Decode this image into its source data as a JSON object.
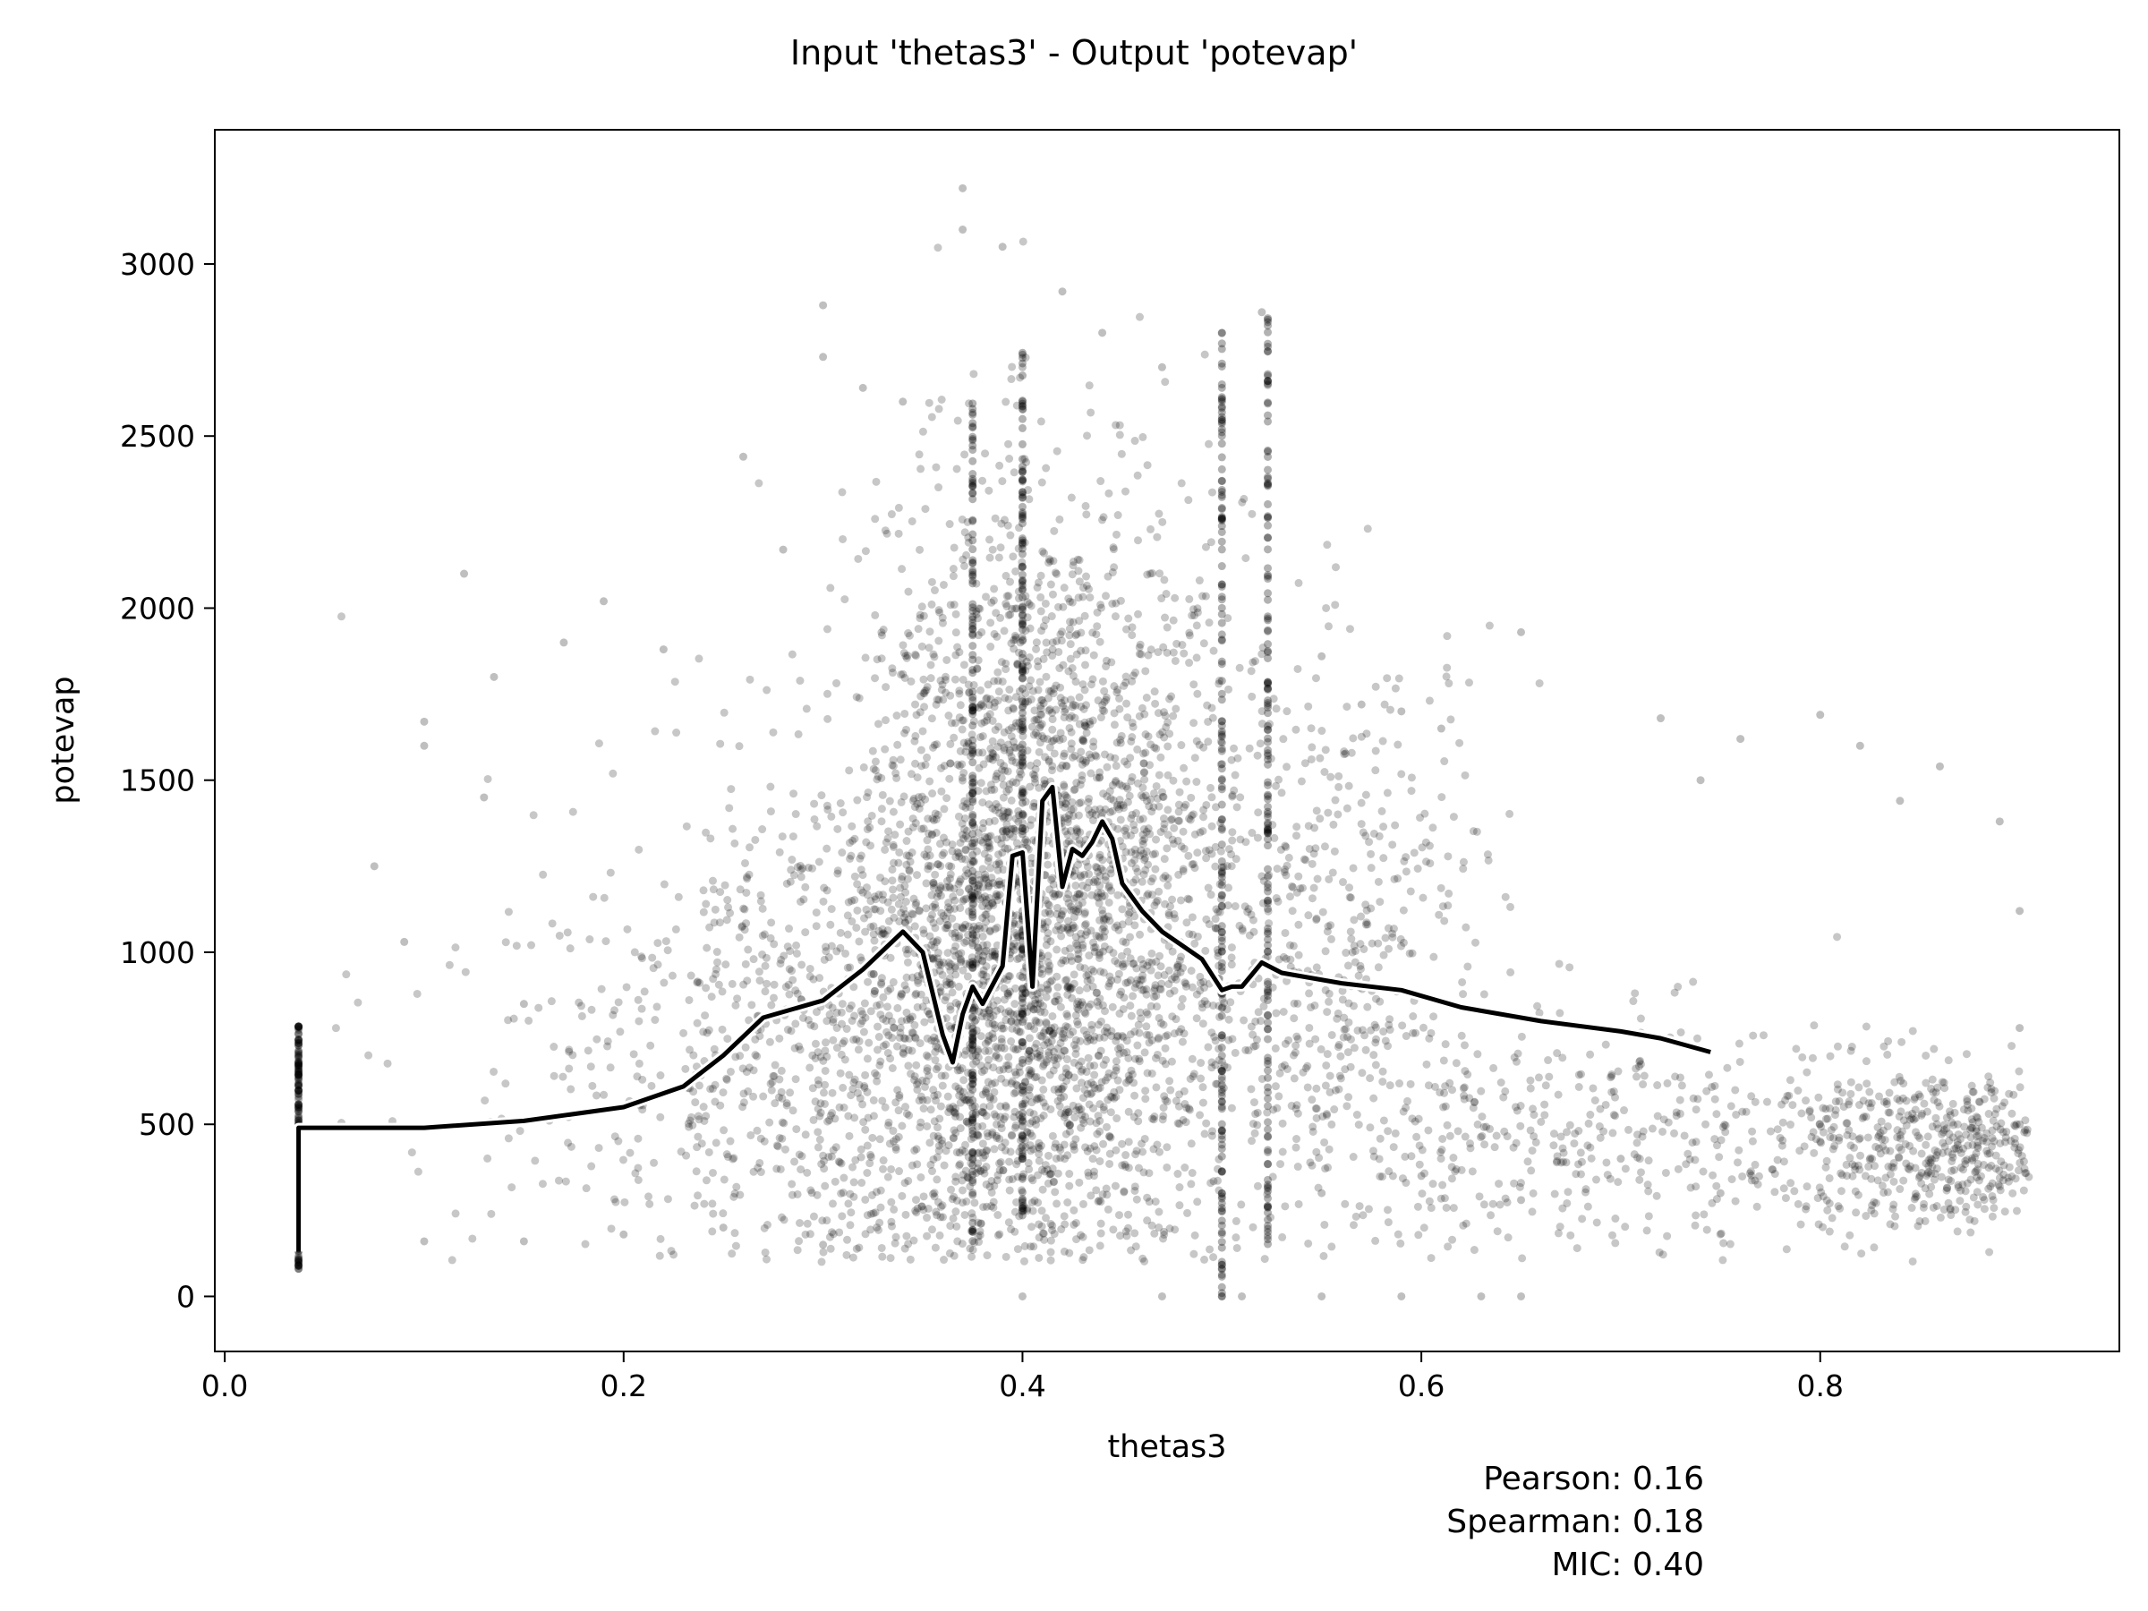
{
  "chart_data": {
    "type": "scatter",
    "title": "Input 'thetas3' - Output 'potevap'",
    "xlabel": "thetas3",
    "ylabel": "potevap",
    "xlim": [
      -0.005,
      0.95
    ],
    "ylim": [
      -160,
      3390
    ],
    "x_ticks": [
      0.0,
      0.2,
      0.4,
      0.6,
      0.8
    ],
    "x_tick_labels": [
      "0.0",
      "0.2",
      "0.4",
      "0.6",
      "0.8"
    ],
    "y_ticks": [
      0,
      500,
      1000,
      1500,
      2000,
      2500,
      3000
    ],
    "y_tick_labels": [
      "0",
      "500",
      "1000",
      "1500",
      "2000",
      "2500",
      "3000"
    ],
    "grid": false,
    "stats": {
      "pearson_label": "Pearson: 0.16",
      "spearman_label": "Spearman: 0.18",
      "mic_label": "MIC: 0.40"
    },
    "series": [
      {
        "type": "scatter",
        "color": "#000000",
        "opacity": 0.25,
        "description_points": [
          [
            0.037,
            780
          ],
          [
            0.037,
            700
          ],
          [
            0.037,
            600
          ],
          [
            0.037,
            520
          ],
          [
            0.037,
            90
          ],
          [
            0.075,
            1250
          ],
          [
            0.09,
            1030
          ],
          [
            0.1,
            1670
          ],
          [
            0.1,
            1600
          ],
          [
            0.1,
            160
          ],
          [
            0.12,
            2100
          ],
          [
            0.13,
            1450
          ],
          [
            0.135,
            1800
          ],
          [
            0.15,
            850
          ],
          [
            0.17,
            1900
          ],
          [
            0.19,
            2020
          ],
          [
            0.22,
            1880
          ],
          [
            0.26,
            2440
          ],
          [
            0.28,
            2170
          ],
          [
            0.3,
            2880
          ],
          [
            0.3,
            2730
          ],
          [
            0.32,
            2640
          ],
          [
            0.34,
            2600
          ],
          [
            0.37,
            3220
          ],
          [
            0.37,
            3100
          ],
          [
            0.39,
            3050
          ],
          [
            0.4,
            2700
          ],
          [
            0.42,
            2920
          ],
          [
            0.44,
            2800
          ],
          [
            0.47,
            2700
          ],
          [
            0.5,
            2800
          ],
          [
            0.52,
            2860
          ],
          [
            0.55,
            1860
          ],
          [
            0.57,
            1720
          ],
          [
            0.59,
            1700
          ],
          [
            0.61,
            1650
          ],
          [
            0.65,
            1930
          ],
          [
            0.72,
            1680
          ],
          [
            0.74,
            1500
          ],
          [
            0.76,
            1620
          ],
          [
            0.8,
            1690
          ],
          [
            0.82,
            1600
          ],
          [
            0.84,
            1440
          ],
          [
            0.86,
            1540
          ],
          [
            0.89,
            1380
          ],
          [
            0.9,
            1120
          ],
          [
            0.9,
            780
          ],
          [
            0.9,
            500
          ],
          [
            0.85,
            350
          ],
          [
            0.8,
            450
          ],
          [
            0.75,
            300
          ],
          [
            0.7,
            400
          ],
          [
            0.65,
            280
          ],
          [
            0.6,
            350
          ],
          [
            0.55,
            300
          ],
          [
            0.5,
            0
          ],
          [
            0.51,
            0
          ],
          [
            0.4,
            0
          ],
          [
            0.47,
            0
          ],
          [
            0.55,
            0
          ],
          [
            0.59,
            0
          ],
          [
            0.63,
            0
          ],
          [
            0.65,
            0
          ],
          [
            0.3,
            150
          ],
          [
            0.25,
            200
          ],
          [
            0.2,
            180
          ],
          [
            0.15,
            160
          ]
        ]
      },
      {
        "type": "line",
        "name": "",
        "color": "#000000",
        "outline": "#ffffff",
        "x": [
          0.037,
          0.037,
          0.1,
          0.15,
          0.2,
          0.23,
          0.25,
          0.27,
          0.3,
          0.32,
          0.34,
          0.35,
          0.36,
          0.365,
          0.37,
          0.375,
          0.38,
          0.39,
          0.395,
          0.4,
          0.405,
          0.41,
          0.415,
          0.42,
          0.425,
          0.43,
          0.435,
          0.44,
          0.445,
          0.45,
          0.46,
          0.47,
          0.48,
          0.49,
          0.5,
          0.505,
          0.51,
          0.52,
          0.53,
          0.56,
          0.59,
          0.62,
          0.66,
          0.7,
          0.72,
          0.745
        ],
        "y": [
          130,
          490,
          490,
          510,
          550,
          610,
          700,
          810,
          860,
          950,
          1060,
          1000,
          760,
          680,
          820,
          900,
          850,
          960,
          1280,
          1290,
          900,
          1440,
          1480,
          1190,
          1300,
          1280,
          1320,
          1380,
          1330,
          1200,
          1120,
          1060,
          1020,
          980,
          890,
          900,
          900,
          970,
          940,
          910,
          890,
          840,
          800,
          770,
          750,
          710
        ]
      }
    ]
  }
}
